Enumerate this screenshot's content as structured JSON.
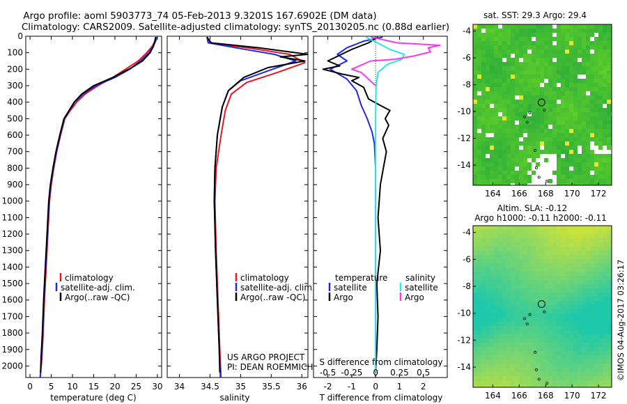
{
  "header": {
    "line1": "Argo profile: aoml 5903773_74 05-Feb-2013 9.3201S 167.6902E (DM data)",
    "line2": "Climatology: CARS2009. Satellite-adjusted climatology: synTS_20130205.nc (0.88d earlier)"
  },
  "colors": {
    "climatology": "#e8141e",
    "satellite": "#1e28e6",
    "argo": "#000000",
    "sat_salinity": "#28e6e6",
    "argo_salinity": "#f03cf0"
  },
  "chart_data": [
    {
      "type": "line",
      "id": "temperature",
      "xlabel": "temperature (deg C)",
      "xlim": [
        -1,
        31
      ],
      "ylim": [
        0,
        2070
      ],
      "xticks": [
        0,
        5,
        10,
        15,
        20,
        25,
        30
      ],
      "xtick_labels": [
        "0",
        "5",
        "10",
        "15",
        "20",
        "25",
        "30"
      ],
      "yticks": [
        0,
        100,
        200,
        300,
        400,
        500,
        600,
        700,
        800,
        900,
        1000,
        1100,
        1200,
        1300,
        1400,
        1500,
        1600,
        1700,
        1800,
        1900,
        2000
      ],
      "ytick_labels": [
        "0",
        "100",
        "200",
        "300",
        "400",
        "500",
        "600",
        "700",
        "800",
        "900",
        "1000",
        "1100",
        "1200",
        "1300",
        "1400",
        "1500",
        "1600",
        "1700",
        "1800",
        "1900",
        "2000"
      ],
      "legend": [
        "climatology",
        "satellite-adj. clim.",
        "Argo(..raw -QC)"
      ],
      "series": [
        {
          "name": "climatology",
          "color": "#e8141e",
          "points": [
            [
              29.6,
              5
            ],
            [
              29.4,
              30
            ],
            [
              28.8,
              60
            ],
            [
              27.5,
              100
            ],
            [
              25.5,
              150
            ],
            [
              22.5,
              200
            ],
            [
              19.5,
              250
            ],
            [
              16,
              300
            ],
            [
              13,
              350
            ],
            [
              11,
              400
            ],
            [
              9.5,
              450
            ],
            [
              8.2,
              500
            ],
            [
              7.2,
              600
            ],
            [
              6.3,
              700
            ],
            [
              5.6,
              800
            ],
            [
              5,
              900
            ],
            [
              4.6,
              1000
            ],
            [
              4.2,
              1200
            ],
            [
              3.8,
              1400
            ],
            [
              3.4,
              1600
            ],
            [
              3.1,
              1800
            ],
            [
              2.8,
              1950
            ],
            [
              2.4,
              2070
            ]
          ]
        },
        {
          "name": "satellite-adj. clim.",
          "color": "#1e28e6",
          "points": [
            [
              29.8,
              5
            ],
            [
              29.6,
              30
            ],
            [
              29,
              60
            ],
            [
              28,
              100
            ],
            [
              26,
              150
            ],
            [
              23.5,
              200
            ],
            [
              20,
              250
            ],
            [
              15.5,
              300
            ],
            [
              12.5,
              350
            ],
            [
              10.5,
              400
            ],
            [
              9.3,
              450
            ],
            [
              8.1,
              500
            ],
            [
              7.1,
              600
            ],
            [
              6.2,
              700
            ],
            [
              5.5,
              800
            ],
            [
              4.9,
              900
            ],
            [
              4.5,
              1000
            ],
            [
              4.1,
              1200
            ],
            [
              3.7,
              1400
            ],
            [
              3.3,
              1600
            ],
            [
              3,
              1800
            ],
            [
              2.7,
              1950
            ],
            [
              2.4,
              2070
            ]
          ]
        },
        {
          "name": "Argo(..raw -QC)",
          "color": "#000000",
          "points": [
            [
              29.6,
              5
            ],
            [
              29.4,
              30
            ],
            [
              29.1,
              60
            ],
            [
              28.3,
              100
            ],
            [
              26.5,
              150
            ],
            [
              24,
              190
            ],
            [
              19.5,
              250
            ],
            [
              15,
              300
            ],
            [
              12.2,
              350
            ],
            [
              10.4,
              400
            ],
            [
              9.2,
              450
            ],
            [
              8,
              500
            ],
            [
              7,
              600
            ],
            [
              6.1,
              700
            ],
            [
              5.4,
              800
            ],
            [
              4.8,
              900
            ],
            [
              4.4,
              1000
            ],
            [
              4,
              1200
            ],
            [
              3.6,
              1400
            ],
            [
              3.2,
              1600
            ],
            [
              2.9,
              1800
            ],
            [
              2.6,
              1950
            ],
            [
              2.5,
              2040
            ]
          ]
        }
      ]
    },
    {
      "type": "line",
      "id": "salinity",
      "xlabel": "salinity",
      "xlim": [
        33.8,
        36.1
      ],
      "ylim": [
        0,
        2070
      ],
      "xticks": [
        34,
        34.5,
        35,
        35.5,
        36
      ],
      "xtick_labels": [
        "34",
        "34.5",
        "35",
        "35.5",
        "36"
      ],
      "legend": [
        "climatology",
        "satellite-adj. clim.",
        "Argo(..raw -QC)"
      ],
      "annotation": [
        "US ARGO PROJECT",
        "PI: DEAN ROEMMICH"
      ],
      "series": [
        {
          "name": "climatology",
          "color": "#e8141e",
          "points": [
            [
              34.45,
              5
            ],
            [
              34.5,
              40
            ],
            [
              35.2,
              75
            ],
            [
              35.8,
              110
            ],
            [
              36.05,
              160
            ],
            [
              35.6,
              220
            ],
            [
              35.1,
              280
            ],
            [
              34.85,
              350
            ],
            [
              34.75,
              450
            ],
            [
              34.68,
              600
            ],
            [
              34.6,
              800
            ],
            [
              34.58,
              1000
            ],
            [
              34.6,
              1300
            ],
            [
              34.63,
              1600
            ],
            [
              34.66,
              1900
            ],
            [
              34.68,
              2070
            ]
          ]
        },
        {
          "name": "satellite-adj. clim.",
          "color": "#1e28e6",
          "points": [
            [
              34.45,
              5
            ],
            [
              34.47,
              40
            ],
            [
              35,
              75
            ],
            [
              35.55,
              110
            ],
            [
              35.9,
              150
            ],
            [
              35.45,
              210
            ],
            [
              35,
              270
            ],
            [
              34.8,
              330
            ],
            [
              34.7,
              430
            ],
            [
              34.62,
              600
            ],
            [
              34.58,
              800
            ],
            [
              34.57,
              1000
            ],
            [
              34.59,
              1300
            ],
            [
              34.62,
              1600
            ],
            [
              34.65,
              1900
            ],
            [
              34.67,
              2070
            ]
          ]
        },
        {
          "name": "Argo(..raw -QC)",
          "color": "#000000",
          "points": [
            [
              34.45,
              5
            ],
            [
              34.52,
              40
            ],
            [
              35.3,
              70
            ],
            [
              36.1,
              110
            ],
            [
              35.65,
              125
            ],
            [
              36.05,
              150
            ],
            [
              35.45,
              190
            ],
            [
              35.05,
              250
            ],
            [
              34.8,
              330
            ],
            [
              34.7,
              430
            ],
            [
              34.62,
              600
            ],
            [
              34.58,
              800
            ],
            [
              34.57,
              1000
            ],
            [
              34.59,
              1300
            ],
            [
              34.62,
              1600
            ],
            [
              34.65,
              1900
            ],
            [
              34.66,
              2040
            ]
          ]
        }
      ]
    },
    {
      "type": "line",
      "id": "difference",
      "xlabel": "T difference from climatology",
      "top_axis_label": "S difference from climatology",
      "xlim": [
        -2.6,
        3
      ],
      "ylim": [
        0,
        2070
      ],
      "xticks": [
        -2,
        -1,
        0,
        1,
        2
      ],
      "xtick_labels": [
        "-2",
        "-1",
        "0",
        "1",
        "2"
      ],
      "s_ticks": [
        -0.5,
        -0.25,
        0,
        0.25,
        0.5
      ],
      "s_tick_labels": [
        "-0.5",
        "-0.25",
        "0",
        "0.25",
        "0.5"
      ],
      "legend": {
        "temperature_title": "temperature",
        "salinity_title": "salinity",
        "temperature_items": [
          "satellite",
          "Argo"
        ],
        "salinity_items": [
          "satellite",
          "Argo"
        ]
      },
      "series": [
        {
          "name": "temperature satellite",
          "color": "#1e28e6",
          "points": [
            [
              0.3,
              5
            ],
            [
              -0.5,
              30
            ],
            [
              -1.2,
              70
            ],
            [
              -1.6,
              110
            ],
            [
              -1.2,
              150
            ],
            [
              -1.9,
              200
            ],
            [
              -1.2,
              260
            ],
            [
              -0.8,
              330
            ],
            [
              -0.6,
              420
            ],
            [
              -0.35,
              500
            ],
            [
              -0.15,
              580
            ],
            [
              -0.05,
              650
            ],
            [
              0,
              800
            ],
            [
              0,
              1000
            ],
            [
              0,
              1500
            ],
            [
              0,
              2040
            ]
          ]
        },
        {
          "name": "temperature Argo",
          "color": "#000000",
          "points": [
            [
              0.1,
              5
            ],
            [
              -0.3,
              40
            ],
            [
              -1,
              80
            ],
            [
              -2,
              150
            ],
            [
              -1.5,
              180
            ],
            [
              -2.2,
              200
            ],
            [
              -1.4,
              230
            ],
            [
              -0.7,
              250
            ],
            [
              -1,
              270
            ],
            [
              -0.5,
              310
            ],
            [
              -0.3,
              380
            ],
            [
              0.2,
              420
            ],
            [
              0.6,
              450
            ],
            [
              0.4,
              500
            ],
            [
              0.55,
              540
            ],
            [
              0.3,
              620
            ],
            [
              0.45,
              700
            ],
            [
              0.2,
              900
            ],
            [
              0.1,
              1100
            ],
            [
              0.2,
              1300
            ],
            [
              0.05,
              1500
            ],
            [
              0.1,
              1700
            ],
            [
              0.05,
              1900
            ],
            [
              0,
              2040
            ]
          ]
        },
        {
          "name": "salinity satellite",
          "color": "#28e6e6",
          "points": [
            [
              -0.4,
              5
            ],
            [
              0.6,
              80
            ],
            [
              1.2,
              110
            ],
            [
              1.1,
              140
            ],
            [
              0.5,
              170
            ],
            [
              0.1,
              220
            ],
            [
              0.02,
              300
            ],
            [
              0,
              500
            ],
            [
              0,
              1000
            ],
            [
              0,
              2040
            ]
          ]
        },
        {
          "name": "salinity Argo",
          "color": "#f03cf0",
          "points": [
            [
              -0.2,
              5
            ],
            [
              0.9,
              40
            ],
            [
              2.7,
              55
            ],
            [
              2.2,
              70
            ],
            [
              2.3,
              95
            ],
            [
              1.6,
              120
            ],
            [
              0.8,
              140
            ],
            [
              -0.2,
              150
            ],
            [
              -1,
              200
            ],
            [
              -0.6,
              220
            ],
            [
              -0.3,
              260
            ],
            [
              0,
              300
            ]
          ]
        }
      ]
    },
    {
      "type": "heatmap",
      "id": "sst-map",
      "title": "sat. SST: 29.3 Argo: 29.4",
      "xlim": [
        162.5,
        173
      ],
      "ylim": [
        -15.5,
        -3.5
      ],
      "xticks": [
        164,
        166,
        168,
        170,
        172
      ],
      "xtick_labels": [
        "164",
        "166",
        "168",
        "170",
        "172"
      ],
      "yticks": [
        -4,
        -6,
        -8,
        -10,
        -12,
        -14
      ],
      "ytick_labels": [
        "-4",
        "-6",
        "-8",
        "-10",
        "-12",
        "-14"
      ],
      "argo_position": [
        167.69,
        -9.32
      ]
    },
    {
      "type": "heatmap",
      "id": "sla-map",
      "title": [
        "Altim. SLA: -0.12",
        "Argo h1000: -0.11 h2000: -0.11"
      ],
      "xlim": [
        162.5,
        173
      ],
      "ylim": [
        -15.5,
        -3.5
      ],
      "xticks": [
        164,
        166,
        168,
        170,
        172
      ],
      "xtick_labels": [
        "164",
        "166",
        "168",
        "170",
        "172"
      ],
      "yticks": [
        -4,
        -6,
        -8,
        -10,
        -12,
        -14
      ],
      "ytick_labels": [
        "-4",
        "-6",
        "-8",
        "-10",
        "-12",
        "-14"
      ],
      "argo_position": [
        167.69,
        -9.32
      ]
    }
  ],
  "footer": {
    "credit": "©IMOS 04-Aug-2017 03:26:17"
  }
}
